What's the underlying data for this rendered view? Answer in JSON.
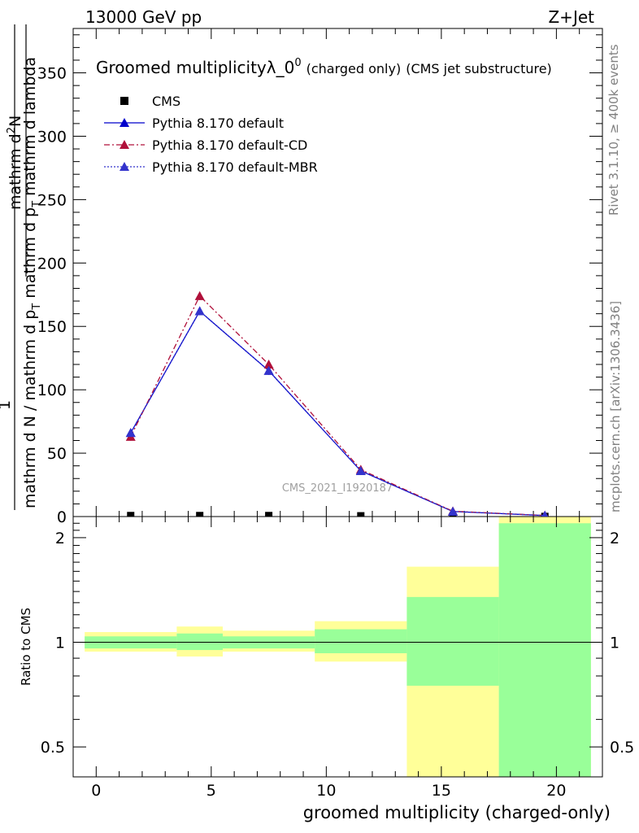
{
  "header": {
    "energy": "13000 GeV pp",
    "process": "Z+Jet"
  },
  "side": {
    "rivet": "Rivet 3.1.10, ≥ 400k events",
    "mcplots": "mcplots.cern.ch [arXiv:1306.3436]"
  },
  "watermark": "CMS_2021_I1920187",
  "title": {
    "main": "Groomed multiplicityλ_0",
    "sup": "0",
    "small": "(charged only)",
    "tail": "(CMS jet substructure)"
  },
  "ylabel_main": {
    "numerator": "1",
    "denominator": "mathrm d N / mathrm d p",
    "den_sub": "T",
    "den_tail": " mathrm d p",
    "den_sub2": "T",
    "den_end": " mathrm d lambda"
  },
  "ylabel_inner": {
    "numerator": "mathrm d",
    "num_sup": "2",
    "num_end": "N",
    "denominator": "mathrm d p",
    "den_sub": "T",
    "den_end": " mathrm d lambda"
  },
  "ratio_ylabel": "Ratio to CMS",
  "xlabel": "groomed multiplicity (charged-only)",
  "legend": [
    {
      "label": "CMS",
      "color": "#000000",
      "style": "marker"
    },
    {
      "label": "Pythia 8.170 default",
      "color": "#0000cc",
      "style": "solid"
    },
    {
      "label": "Pythia 8.170 default-CD",
      "color": "#b0103a",
      "style": "dashdot"
    },
    {
      "label": "Pythia 8.170 default-MBR",
      "color": "#3333cc",
      "style": "dotted"
    }
  ],
  "chart_data": {
    "type": "line",
    "xlim": [
      -1,
      22
    ],
    "ylim": [
      0,
      385
    ],
    "ratio_ylim": [
      0.41,
      2.3
    ],
    "xticks": [
      0,
      5,
      10,
      15,
      20
    ],
    "yticks": [
      50,
      100,
      150,
      200,
      250,
      300,
      350
    ],
    "ratio_yticks": [
      0.5,
      1,
      2
    ],
    "grid": false,
    "legend_position": "top-left",
    "x": [
      1.5,
      4.5,
      7.5,
      11.5,
      15.5,
      19.5
    ],
    "bin_edges": [
      -0.5,
      3.5,
      5.5,
      9.5,
      13.5,
      17.5,
      21.5
    ],
    "series": [
      {
        "name": "CMS",
        "values": [
          0.8,
          0.8,
          0.8,
          0.6,
          0.2,
          0.1
        ]
      },
      {
        "name": "Pythia 8.170 default",
        "values": [
          66,
          162,
          115,
          36,
          4,
          0.8
        ]
      },
      {
        "name": "Pythia 8.170 default-CD",
        "values": [
          63,
          174,
          120,
          37,
          4.2,
          0.9
        ]
      },
      {
        "name": "Pythia 8.170 default-MBR",
        "values": [
          66,
          162,
          115,
          36,
          4,
          0.8
        ]
      }
    ],
    "ratio_bands": {
      "green": [
        [
          0.96,
          1.04
        ],
        [
          0.95,
          1.06
        ],
        [
          0.96,
          1.04
        ],
        [
          0.93,
          1.09
        ],
        [
          0.75,
          1.35
        ],
        [
          0.41,
          2.2
        ]
      ],
      "yellow": [
        [
          0.94,
          1.07
        ],
        [
          0.91,
          1.11
        ],
        [
          0.94,
          1.08
        ],
        [
          0.88,
          1.15
        ],
        [
          0.38,
          1.65
        ],
        [
          0.41,
          2.3
        ]
      ]
    }
  }
}
